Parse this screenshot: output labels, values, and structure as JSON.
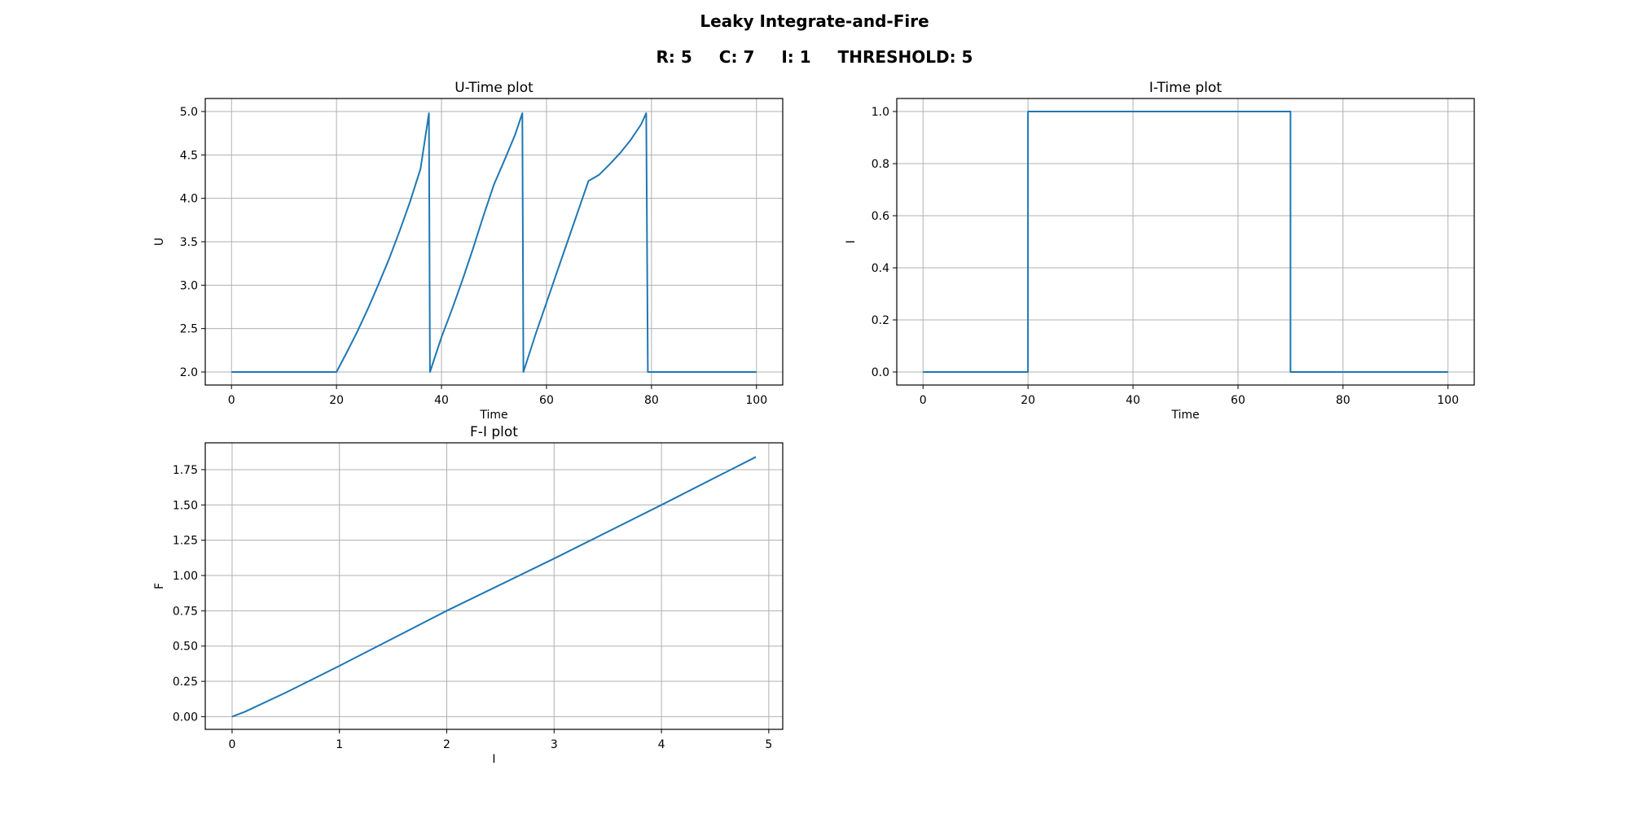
{
  "figure": {
    "title": "Leaky Integrate-and-Fire",
    "params": [
      {
        "label": "R:",
        "value": "5"
      },
      {
        "label": "C:",
        "value": "7"
      },
      {
        "label": "I:",
        "value": "1"
      },
      {
        "label": "THRESHOLD:",
        "value": "5"
      }
    ]
  },
  "colors": {
    "line": "#1f77b4",
    "grid": "#b0b0b0",
    "axes": "#000000"
  },
  "chart_data": [
    {
      "id": "u",
      "type": "line",
      "title": "U-Time plot",
      "xlabel": "Time",
      "ylabel": "U",
      "xlim": [
        -5,
        105
      ],
      "ylim": [
        1.85,
        5.15
      ],
      "xticks": [
        0,
        20,
        40,
        60,
        80,
        100
      ],
      "yticks": [
        2.0,
        2.5,
        3.0,
        3.5,
        4.0,
        4.5,
        5.0
      ],
      "tick_decimals": [
        0,
        1
      ],
      "grid": true,
      "series": [
        {
          "x": [
            0,
            20,
            22,
            24,
            26,
            28,
            30,
            32,
            34,
            36,
            37.6,
            37.8,
            40,
            42,
            44,
            46,
            48,
            50,
            52,
            54,
            55.4,
            55.6,
            58,
            60,
            62,
            64,
            66,
            68,
            70,
            72,
            74,
            76,
            78,
            79,
            79.3,
            80,
            100
          ],
          "y": [
            2.0,
            2.0,
            2.23,
            2.47,
            2.73,
            3.01,
            3.3,
            3.62,
            3.96,
            4.34,
            4.98,
            2.0,
            2.4,
            2.72,
            3.06,
            3.42,
            3.8,
            4.16,
            4.44,
            4.73,
            4.98,
            2.0,
            2.45,
            2.8,
            3.15,
            3.5,
            3.85,
            4.2,
            4.27,
            4.39,
            4.52,
            4.67,
            4.85,
            4.98,
            2.0,
            2.0,
            2.0
          ]
        }
      ]
    },
    {
      "id": "i",
      "type": "line",
      "title": "I-Time plot",
      "xlabel": "Time",
      "ylabel": "I",
      "xlim": [
        -5,
        105
      ],
      "ylim": [
        -0.05,
        1.05
      ],
      "xticks": [
        0,
        20,
        40,
        60,
        80,
        100
      ],
      "yticks": [
        0.0,
        0.2,
        0.4,
        0.6,
        0.8,
        1.0
      ],
      "tick_decimals": [
        0,
        1
      ],
      "grid": true,
      "series": [
        {
          "x": [
            0,
            20,
            20,
            70,
            70,
            100
          ],
          "y": [
            0,
            0,
            1,
            1,
            0,
            0
          ]
        }
      ]
    },
    {
      "id": "f",
      "type": "line",
      "title": "F-I plot",
      "xlabel": "I",
      "ylabel": "F",
      "xlim": [
        -0.25,
        5.13
      ],
      "ylim": [
        -0.09,
        1.94
      ],
      "xticks": [
        0,
        1,
        2,
        3,
        4,
        5
      ],
      "yticks": [
        0.0,
        0.25,
        0.5,
        0.75,
        1.0,
        1.25,
        1.5,
        1.75
      ],
      "tick_decimals": [
        0,
        2
      ],
      "grid": true,
      "series": [
        {
          "x": [
            0,
            0.12,
            0.5,
            1,
            2,
            3,
            4,
            4.88
          ],
          "y": [
            0,
            0.035,
            0.17,
            0.36,
            0.75,
            1.12,
            1.5,
            1.84
          ]
        }
      ]
    }
  ]
}
